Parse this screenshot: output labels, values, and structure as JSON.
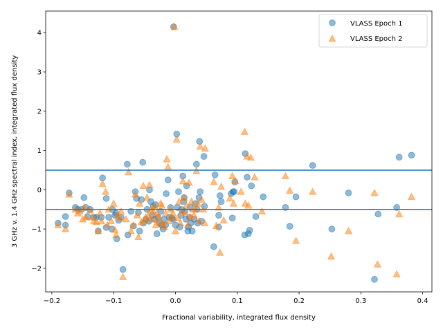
{
  "chart_data": {
    "type": "scatter",
    "xlabel": "Fractional variability, integrated flux density",
    "ylabel": "3 GHz v. 1.4 GHz spectral index, integrated flux density",
    "xlim": [
      -0.21,
      0.415
    ],
    "ylim": [
      -2.6,
      4.55
    ],
    "x_ticks": [
      -0.2,
      -0.1,
      0.0,
      0.1,
      0.2,
      0.3,
      0.4
    ],
    "x_tick_labels": [
      "−0.2",
      "−0.1",
      "0.0",
      "0.1",
      "0.2",
      "0.3",
      "0.4"
    ],
    "y_ticks": [
      -2,
      -1,
      0,
      1,
      2,
      3,
      4
    ],
    "y_tick_labels": [
      "−2",
      "−1",
      "0",
      "1",
      "2",
      "3",
      "4"
    ],
    "grid": false,
    "legend_position": "top-right",
    "hlines": [
      0.5,
      -0.5
    ],
    "hline_color": "#1f77b4",
    "series": [
      {
        "name": "VLASS Epoch 1",
        "marker": "circle",
        "color": "#1f77b4",
        "points": [
          [
            -0.19,
            -0.85
          ],
          [
            -0.178,
            -0.9
          ],
          [
            -0.178,
            -0.68
          ],
          [
            -0.172,
            -0.08
          ],
          [
            -0.162,
            -0.45
          ],
          [
            -0.158,
            -0.5
          ],
          [
            -0.152,
            -0.5
          ],
          [
            -0.148,
            -0.2
          ],
          [
            -0.145,
            -0.45
          ],
          [
            -0.142,
            -0.68
          ],
          [
            -0.138,
            -0.5
          ],
          [
            -0.132,
            -0.7
          ],
          [
            -0.128,
            -0.7
          ],
          [
            -0.125,
            -1.05
          ],
          [
            -0.12,
            -0.7
          ],
          [
            -0.118,
            0.3
          ],
          [
            -0.112,
            -0.96
          ],
          [
            -0.112,
            -0.22
          ],
          [
            -0.108,
            -0.7
          ],
          [
            -0.103,
            -1.0
          ],
          [
            -0.102,
            -0.5
          ],
          [
            -0.098,
            -0.65
          ],
          [
            -0.096,
            -0.6
          ],
          [
            -0.095,
            -1.25
          ],
          [
            -0.092,
            -0.78
          ],
          [
            -0.088,
            -0.7
          ],
          [
            -0.085,
            -2.03
          ],
          [
            -0.078,
            0.65
          ],
          [
            -0.077,
            -1.15
          ],
          [
            -0.072,
            -0.55
          ],
          [
            -0.068,
            -0.92
          ],
          [
            -0.065,
            -0.05
          ],
          [
            -0.063,
            -0.22
          ],
          [
            -0.06,
            -0.58
          ],
          [
            -0.058,
            -1.05
          ],
          [
            -0.055,
            -0.25
          ],
          [
            -0.053,
            0.7
          ],
          [
            -0.052,
            -0.85
          ],
          [
            -0.048,
            -0.75
          ],
          [
            -0.046,
            -0.5
          ],
          [
            -0.043,
            -0.8
          ],
          [
            -0.042,
            0.0
          ],
          [
            -0.04,
            -0.3
          ],
          [
            -0.038,
            -0.65
          ],
          [
            -0.036,
            -0.42
          ],
          [
            -0.034,
            -0.75
          ],
          [
            -0.032,
            -0.38
          ],
          [
            -0.03,
            -1.12
          ],
          [
            -0.028,
            -0.7
          ],
          [
            -0.026,
            -0.85
          ],
          [
            -0.024,
            -0.55
          ],
          [
            -0.022,
            -0.9
          ],
          [
            -0.02,
            -1.0
          ],
          [
            -0.018,
            -0.75
          ],
          [
            -0.016,
            -0.9
          ],
          [
            -0.015,
            -0.1
          ],
          [
            -0.012,
            0.25
          ],
          [
            -0.01,
            -0.7
          ],
          [
            -0.008,
            -0.45
          ],
          [
            -0.006,
            -0.72
          ],
          [
            -0.004,
            -0.75
          ],
          [
            -0.003,
            4.15
          ],
          [
            0.0,
            -0.9
          ],
          [
            0.002,
            1.42
          ],
          [
            0.003,
            -0.45
          ],
          [
            0.005,
            -0.05
          ],
          [
            0.007,
            -0.95
          ],
          [
            0.009,
            -0.65
          ],
          [
            0.01,
            -0.5
          ],
          [
            0.012,
            0.35
          ],
          [
            0.013,
            -0.3
          ],
          [
            0.014,
            -0.2
          ],
          [
            0.015,
            -0.55
          ],
          [
            0.017,
            -0.75
          ],
          [
            0.018,
            0.1
          ],
          [
            0.02,
            -1.05
          ],
          [
            0.021,
            -0.95
          ],
          [
            0.023,
            -0.7
          ],
          [
            0.024,
            -0.45
          ],
          [
            0.025,
            -0.85
          ],
          [
            0.027,
            -1.05
          ],
          [
            0.03,
            -0.75
          ],
          [
            0.032,
            -0.35
          ],
          [
            0.034,
            0.65
          ],
          [
            0.035,
            -0.5
          ],
          [
            0.036,
            -0.85
          ],
          [
            0.038,
            -0.2
          ],
          [
            0.039,
            1.23
          ],
          [
            0.04,
            -0.05
          ],
          [
            0.042,
            -0.8
          ],
          [
            0.046,
            0.85
          ],
          [
            0.047,
            -0.42
          ],
          [
            0.062,
            -1.45
          ],
          [
            0.064,
            0.38
          ],
          [
            0.07,
            -0.65
          ],
          [
            0.07,
            -0.95
          ],
          [
            0.072,
            -0.15
          ],
          [
            0.074,
            -0.3
          ],
          [
            0.09,
            -0.1
          ],
          [
            0.092,
            -0.72
          ],
          [
            0.093,
            -0.05
          ],
          [
            0.095,
            -0.05
          ],
          [
            0.096,
            0.2
          ],
          [
            0.112,
            -1.15
          ],
          [
            0.113,
            0.92
          ],
          [
            0.116,
            0.32
          ],
          [
            0.118,
            -1.12
          ],
          [
            0.12,
            -1.03
          ],
          [
            0.123,
            0.1
          ],
          [
            0.13,
            -0.68
          ],
          [
            0.142,
            -0.18
          ],
          [
            0.178,
            -0.45
          ],
          [
            0.185,
            -0.93
          ],
          [
            0.195,
            -0.18
          ],
          [
            0.222,
            0.62
          ],
          [
            0.253,
            -1.0
          ],
          [
            0.28,
            -0.08
          ],
          [
            0.322,
            -2.28
          ],
          [
            0.328,
            -0.62
          ],
          [
            0.358,
            -0.45
          ],
          [
            0.362,
            0.83
          ],
          [
            0.382,
            0.88
          ]
        ]
      },
      {
        "name": "VLASS Epoch 2",
        "marker": "triangle",
        "color": "#ff7f0e",
        "points": [
          [
            -0.19,
            -0.9
          ],
          [
            -0.178,
            -1.0
          ],
          [
            -0.172,
            -0.12
          ],
          [
            -0.162,
            -0.5
          ],
          [
            -0.158,
            -0.6
          ],
          [
            -0.155,
            -0.55
          ],
          [
            -0.15,
            -0.75
          ],
          [
            -0.148,
            -0.45
          ],
          [
            -0.145,
            -0.7
          ],
          [
            -0.138,
            -0.52
          ],
          [
            -0.135,
            -0.7
          ],
          [
            -0.132,
            -0.8
          ],
          [
            -0.128,
            -0.82
          ],
          [
            -0.125,
            -1.05
          ],
          [
            -0.122,
            -0.6
          ],
          [
            -0.12,
            -0.8
          ],
          [
            -0.118,
            0.15
          ],
          [
            -0.113,
            -0.05
          ],
          [
            -0.11,
            -0.9
          ],
          [
            -0.108,
            -0.5
          ],
          [
            -0.104,
            -0.8
          ],
          [
            -0.1,
            -0.35
          ],
          [
            -0.098,
            -1.02
          ],
          [
            -0.096,
            -1.15
          ],
          [
            -0.094,
            -0.65
          ],
          [
            -0.09,
            -0.72
          ],
          [
            -0.088,
            -0.55
          ],
          [
            -0.085,
            -2.22
          ],
          [
            -0.08,
            -0.75
          ],
          [
            -0.076,
            0.45
          ],
          [
            -0.072,
            -1.05
          ],
          [
            -0.068,
            -0.9
          ],
          [
            -0.065,
            -0.12
          ],
          [
            -0.062,
            -0.65
          ],
          [
            -0.06,
            -1.2
          ],
          [
            -0.058,
            -0.35
          ],
          [
            -0.055,
            -0.82
          ],
          [
            -0.052,
            0.1
          ],
          [
            -0.05,
            -0.78
          ],
          [
            -0.048,
            -0.7
          ],
          [
            -0.046,
            -0.2
          ],
          [
            -0.044,
            -0.65
          ],
          [
            -0.042,
            0.12
          ],
          [
            -0.04,
            -0.5
          ],
          [
            -0.038,
            -0.75
          ],
          [
            -0.036,
            -0.55
          ],
          [
            -0.034,
            -0.42
          ],
          [
            -0.032,
            -0.9
          ],
          [
            -0.03,
            -0.6
          ],
          [
            -0.028,
            -0.7
          ],
          [
            -0.026,
            -0.82
          ],
          [
            -0.024,
            -0.35
          ],
          [
            -0.022,
            -0.4
          ],
          [
            -0.02,
            -0.85
          ],
          [
            -0.018,
            -0.95
          ],
          [
            -0.016,
            -0.6
          ],
          [
            -0.014,
            0.78
          ],
          [
            -0.012,
            0.58
          ],
          [
            -0.01,
            -0.8
          ],
          [
            -0.008,
            -0.5
          ],
          [
            -0.006,
            -0.7
          ],
          [
            -0.004,
            -0.6
          ],
          [
            -0.002,
            4.15
          ],
          [
            0.0,
            -1.05
          ],
          [
            0.002,
            1.28
          ],
          [
            0.004,
            -0.72
          ],
          [
            0.006,
            -0.3
          ],
          [
            0.008,
            -0.85
          ],
          [
            0.01,
            -0.55
          ],
          [
            0.012,
            0.22
          ],
          [
            0.014,
            -0.2
          ],
          [
            0.016,
            -0.6
          ],
          [
            0.018,
            -0.4
          ],
          [
            0.02,
            -0.9
          ],
          [
            0.022,
            0.18
          ],
          [
            0.024,
            -0.7
          ],
          [
            0.026,
            -0.3
          ],
          [
            0.028,
            -0.5
          ],
          [
            0.03,
            -0.65
          ],
          [
            0.032,
            -0.5
          ],
          [
            0.034,
            0.48
          ],
          [
            0.036,
            -0.35
          ],
          [
            0.038,
            -0.8
          ],
          [
            0.04,
            1.1
          ],
          [
            0.042,
            -0.25
          ],
          [
            0.045,
            -0.5
          ],
          [
            0.047,
            -0.85
          ],
          [
            0.048,
            1.05
          ],
          [
            0.062,
            0.2
          ],
          [
            0.066,
            -0.92
          ],
          [
            0.07,
            -0.45
          ],
          [
            0.072,
            -1.6
          ],
          [
            0.074,
            0.08
          ],
          [
            0.078,
            -0.78
          ],
          [
            0.088,
            -0.22
          ],
          [
            0.092,
            0.35
          ],
          [
            0.094,
            -0.35
          ],
          [
            0.097,
            0.22
          ],
          [
            0.106,
            -0.05
          ],
          [
            0.112,
            1.48
          ],
          [
            0.113,
            -0.35
          ],
          [
            0.116,
            0.85
          ],
          [
            0.118,
            -0.4
          ],
          [
            0.122,
            0.82
          ],
          [
            0.128,
            0.32
          ],
          [
            0.14,
            -0.55
          ],
          [
            0.178,
            0.35
          ],
          [
            0.185,
            -0.02
          ],
          [
            0.195,
            -1.3
          ],
          [
            0.222,
            -0.05
          ],
          [
            0.252,
            -1.7
          ],
          [
            0.28,
            -1.05
          ],
          [
            0.322,
            -0.08
          ],
          [
            0.327,
            -1.9
          ],
          [
            0.358,
            -2.15
          ],
          [
            0.362,
            -0.62
          ],
          [
            0.382,
            -0.18
          ]
        ]
      }
    ]
  }
}
